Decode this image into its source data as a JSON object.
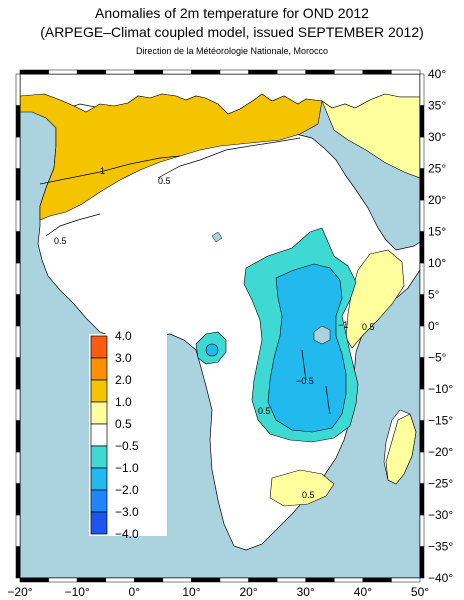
{
  "header": {
    "title": "Anomalies of 2m temperature for OND 2012",
    "subtitle": "(ARPEGE–Climat coupled model, issued SEPTEMBER 2012)",
    "credit": "Direction de la Météorologie Nationale, Morocco"
  },
  "map": {
    "extent": {
      "lon": [
        -20,
        50
      ],
      "lat": [
        -40,
        40
      ]
    },
    "lon_ticks": [
      -20,
      -10,
      0,
      10,
      20,
      30,
      40,
      50
    ],
    "lon_tick_labels": [
      "−20°",
      "−10°",
      "0°",
      "10°",
      "20°",
      "30°",
      "40°",
      "50°"
    ],
    "lat_ticks": [
      40,
      35,
      30,
      25,
      20,
      15,
      10,
      5,
      0,
      -5,
      -10,
      -15,
      -20,
      -25,
      -30,
      -35,
      -40
    ],
    "lat_tick_labels": [
      "40°",
      "35°",
      "30°",
      "25°",
      "20°",
      "15°",
      "10°",
      "5°",
      "0°",
      "−5°",
      "−10°",
      "−15°",
      "−20°",
      "−25°",
      "−30°",
      "−35°",
      "−40°"
    ],
    "contour_labels": [
      "1",
      "0.5",
      "0.5",
      "−1",
      "−0.5",
      "0.5",
      "0.5",
      "0.5"
    ],
    "colors": {
      "ocean": "#abd3df",
      "land_neutral": "#ffffff",
      "warm_05_1": "#ffff9e",
      "warm_1_2": "#f5c400",
      "cool_05_1": "#3dd9d2",
      "cool_1_2": "#22b9ef"
    }
  },
  "legend": {
    "labels": [
      "4.0",
      "3.0",
      "2.0",
      "1.0",
      "0.5",
      "−0.5",
      "−1.0",
      "−2.0",
      "−3.0",
      "−4.0"
    ],
    "colors": [
      "#ff5a14",
      "#ff9000",
      "#f5c400",
      "#ffff9e",
      "#ffffff",
      "#3dd9d2",
      "#22b9ef",
      "#1f86ff",
      "#1e55f2"
    ]
  }
}
